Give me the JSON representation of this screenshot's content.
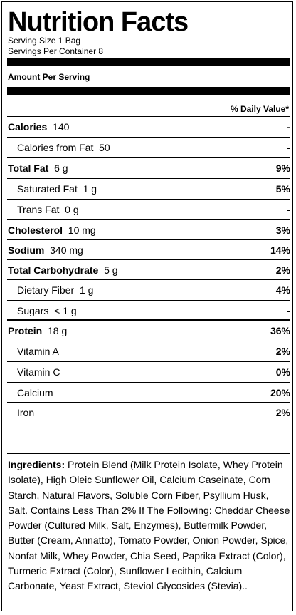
{
  "title": "Nutrition Facts",
  "serving_size": "Serving Size 1 Bag",
  "servings_per_container": "Servings Per Container 8",
  "amount_per_serving": "Amount Per Serving",
  "daily_value_header": "% Daily Value*",
  "rows": [
    {
      "name": "Calories",
      "amount": "140",
      "pct": "-"
    },
    {
      "name": "Calories from Fat",
      "amount": "50",
      "pct": "-"
    },
    {
      "name": "Total Fat",
      "amount": "6 g",
      "pct": "9%"
    },
    {
      "name": "Saturated Fat",
      "amount": "1 g",
      "pct": "5%"
    },
    {
      "name": "Trans Fat",
      "amount": "0 g",
      "pct": "-"
    },
    {
      "name": "Cholesterol",
      "amount": "10 mg",
      "pct": "3%"
    },
    {
      "name": "Sodium",
      "amount": "340 mg",
      "pct": "14%"
    },
    {
      "name": "Total Carbohydrate",
      "amount": "5 g",
      "pct": "2%"
    },
    {
      "name": "Dietary Fiber",
      "amount": "1 g",
      "pct": "4%"
    },
    {
      "name": "Sugars",
      "amount": "< 1 g",
      "pct": "-"
    },
    {
      "name": "Protein",
      "amount": "18 g",
      "pct": "36%"
    },
    {
      "name": "Vitamin A",
      "amount": "",
      "pct": "2%"
    },
    {
      "name": "Vitamin C",
      "amount": "",
      "pct": "0%"
    },
    {
      "name": "Calcium",
      "amount": "",
      "pct": "20%"
    },
    {
      "name": "Iron",
      "amount": "",
      "pct": "2%"
    }
  ],
  "ingredients_label": "Ingredients:",
  "ingredients_text": " Protein Blend (Milk Protein Isolate, Whey Protein Isolate), High Oleic Sunflower Oil, Calcium Caseinate, Corn Starch, Natural Flavors, Soluble Corn Fiber, Psyllium Husk, Salt. Contains Less Than 2% If The Following: Cheddar Cheese Powder (Cultured Milk, Salt, Enzymes), Buttermilk Powder, Butter (Cream, Annatto), Tomato Powder, Onion Powder, Spice, Nonfat Milk, Whey Powder, Chia Seed, Paprika Extract (Color), Turmeric Extract (Color), Sunflower Lecithin, Calcium Carbonate, Yeast Extract, Steviol Glycosides (Stevia).."
}
